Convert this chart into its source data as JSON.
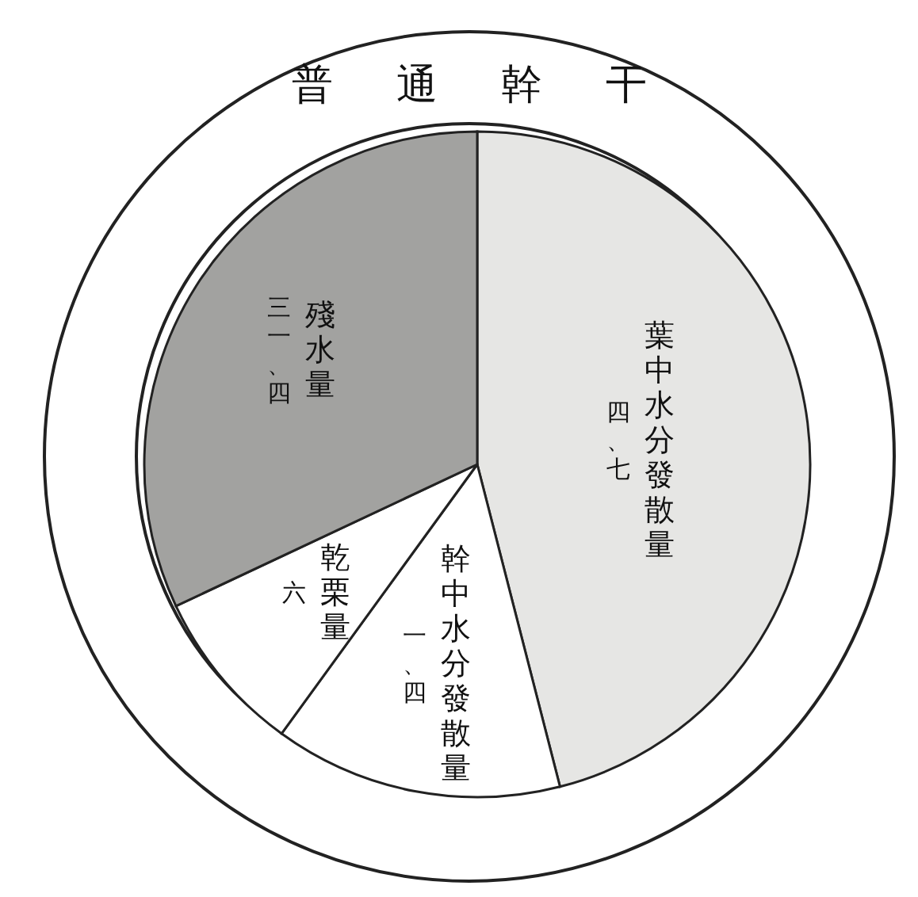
{
  "chart_data": {
    "type": "pie",
    "title": "普通幹干",
    "categories": [
      "葉中水分發散量",
      "幹中水分發散量",
      "乾栗量",
      "殘水量"
    ],
    "values": [
      46,
      14,
      8,
      32
    ],
    "colors": [
      "#e6e6e4",
      "#ffffff",
      "#ffffff",
      "#a2a2a0"
    ],
    "annotations": [
      "四、七",
      "一、四",
      "六",
      "三一、四"
    ]
  }
}
